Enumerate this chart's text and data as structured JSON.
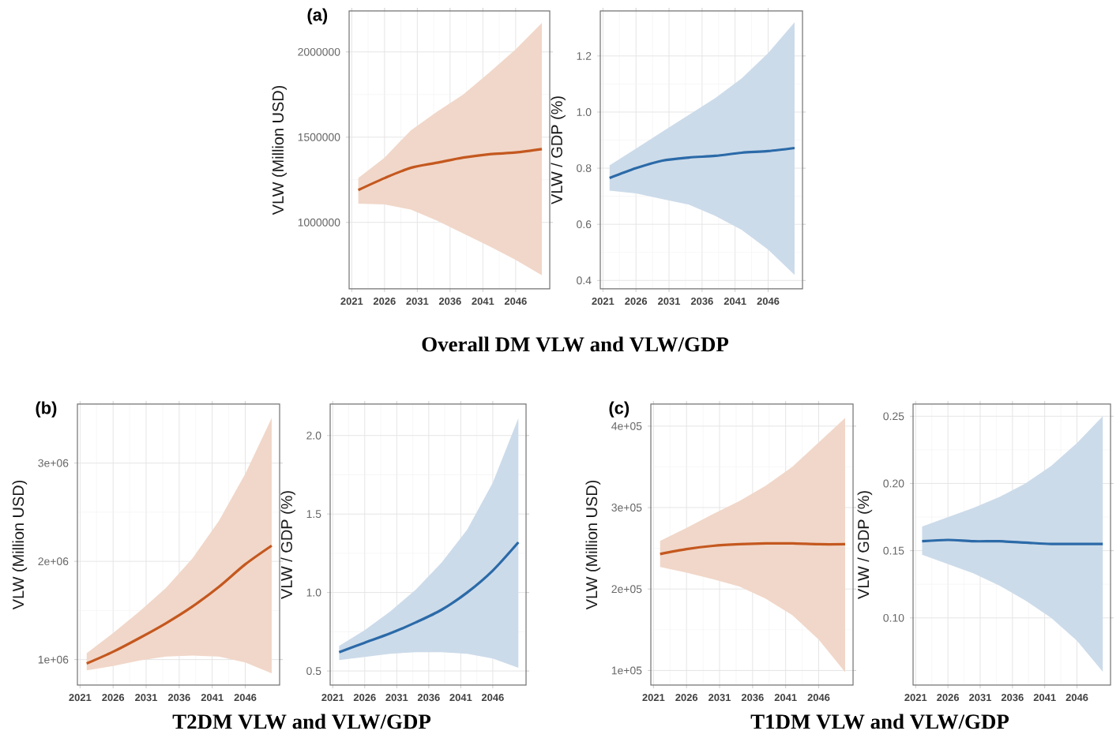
{
  "chart_data": [
    {
      "type": "line",
      "ylabel": "VLW (Million USD)",
      "annotations": [
        "(a)",
        "Overall DM VLW and VLW/GDP"
      ],
      "grid": true,
      "xlim": [
        2020.6,
        2051.2
      ],
      "ylim": [
        610000,
        2240000
      ],
      "xticks": [
        2021,
        2026,
        2031,
        2036,
        2041,
        2046
      ],
      "yticks": [
        1000000,
        1500000,
        2000000
      ],
      "x": [
        2022,
        2026,
        2030,
        2034,
        2038,
        2042,
        2046,
        2050
      ],
      "series": [
        {
          "color": "#c4581f",
          "values": [
            1190000,
            1260000,
            1320000,
            1350000,
            1380000,
            1400000,
            1410000,
            1430000
          ],
          "lower": [
            1110000,
            1105000,
            1075000,
            1010000,
            935000,
            860000,
            780000,
            690000
          ],
          "upper": [
            1260000,
            1380000,
            1540000,
            1650000,
            1750000,
            1880000,
            2015000,
            2170000
          ]
        }
      ]
    },
    {
      "type": "line",
      "ylabel": "VLW / GDP (%)",
      "grid": true,
      "xlim": [
        2020.6,
        2051.2
      ],
      "ylim": [
        0.37,
        1.36
      ],
      "xticks": [
        2021,
        2026,
        2031,
        2036,
        2041,
        2046
      ],
      "yticks": [
        0.4,
        0.6,
        0.8,
        {
          "value": 1,
          "label": "1.0"
        },
        1.2
      ],
      "x": [
        2022,
        2026,
        2030,
        2034,
        2038,
        2042,
        2046,
        2050
      ],
      "series": [
        {
          "color": "#2b6aa8",
          "values": [
            0.765,
            0.8,
            0.827,
            0.838,
            0.844,
            0.855,
            0.861,
            0.872
          ],
          "lower": [
            0.72,
            0.71,
            0.69,
            0.67,
            0.63,
            0.58,
            0.51,
            0.42
          ],
          "upper": [
            0.81,
            0.87,
            0.93,
            0.99,
            1.05,
            1.12,
            1.21,
            1.32
          ]
        }
      ]
    },
    {
      "type": "line",
      "ylabel": "VLW (Million USD)",
      "annotations": [
        "(b)",
        "T2DM VLW and VLW/GDP"
      ],
      "grid": true,
      "xlim": [
        2020.6,
        2051.2
      ],
      "ylim": [
        740000,
        3600000
      ],
      "xticks": [
        2021,
        2026,
        2031,
        2036,
        2041,
        2046
      ],
      "yticks": [
        {
          "value": 1000000,
          "label": "1e+06"
        },
        {
          "value": 2000000,
          "label": "2e+06"
        },
        {
          "value": 3000000,
          "label": "3e+06"
        }
      ],
      "x": [
        2022,
        2026,
        2030,
        2034,
        2038,
        2042,
        2046,
        2050
      ],
      "series": [
        {
          "color": "#c4581f",
          "values": [
            960000,
            1080000,
            1220000,
            1370000,
            1540000,
            1740000,
            1970000,
            2160000
          ],
          "lower": [
            890000,
            935000,
            990000,
            1030000,
            1040000,
            1030000,
            970000,
            860000
          ],
          "upper": [
            1065000,
            1270000,
            1490000,
            1730000,
            2030000,
            2410000,
            2890000,
            3460000
          ]
        }
      ]
    },
    {
      "type": "line",
      "ylabel": "VLW / GDP (%)",
      "grid": true,
      "xlim": [
        2020.6,
        2051.2
      ],
      "ylim": [
        0.41,
        2.2
      ],
      "xticks": [
        2021,
        2026,
        2031,
        2036,
        2041,
        2046
      ],
      "yticks": [
        0.5,
        {
          "value": 1,
          "label": "1.0"
        },
        1.5,
        {
          "value": 2,
          "label": "2.0"
        }
      ],
      "x": [
        2022,
        2026,
        2030,
        2034,
        2038,
        2042,
        2046,
        2050
      ],
      "series": [
        {
          "color": "#2b6aa8",
          "values": [
            0.62,
            0.68,
            0.74,
            0.81,
            0.89,
            1.0,
            1.14,
            1.32
          ],
          "lower": [
            0.57,
            0.59,
            0.61,
            0.62,
            0.62,
            0.61,
            0.58,
            0.52
          ],
          "upper": [
            0.66,
            0.76,
            0.88,
            1.02,
            1.19,
            1.4,
            1.7,
            2.11
          ]
        }
      ]
    },
    {
      "type": "line",
      "ylabel": "VLW (Million USD)",
      "annotations": [
        "(c)",
        "T1DM VLW and VLW/GDP"
      ],
      "grid": true,
      "xlim": [
        2020.6,
        2051.2
      ],
      "ylim": [
        82000,
        427000
      ],
      "xticks": [
        2021,
        2026,
        2031,
        2036,
        2041,
        2046
      ],
      "yticks": [
        {
          "value": 100000,
          "label": "1e+05"
        },
        {
          "value": 200000,
          "label": "2e+05"
        },
        {
          "value": 300000,
          "label": "3e+05"
        },
        {
          "value": 400000,
          "label": "4e+05"
        }
      ],
      "x": [
        2022,
        2026,
        2030,
        2034,
        2038,
        2042,
        2046,
        2050
      ],
      "series": [
        {
          "color": "#c4581f",
          "values": [
            243000,
            249000,
            253000,
            255000,
            256000,
            256000,
            255000,
            255000
          ],
          "lower": [
            227000,
            220000,
            212000,
            203000,
            188000,
            168000,
            138000,
            98000
          ],
          "upper": [
            259000,
            275000,
            292000,
            308000,
            327000,
            350000,
            380000,
            410000
          ]
        }
      ]
    },
    {
      "type": "line",
      "ylabel": "VLW / GDP (%)",
      "grid": true,
      "xlim": [
        2020.6,
        2051.2
      ],
      "ylim": [
        0.05,
        0.259
      ],
      "xticks": [
        2021,
        2026,
        2031,
        2036,
        2041,
        2046
      ],
      "yticks": [
        {
          "value": 0.1,
          "label": "0.10"
        },
        0.15,
        {
          "value": 0.2,
          "label": "0.20"
        },
        0.25
      ],
      "x": [
        2022,
        2026,
        2030,
        2034,
        2038,
        2042,
        2046,
        2050
      ],
      "series": [
        {
          "color": "#2b6aa8",
          "values": [
            0.157,
            0.158,
            0.157,
            0.157,
            0.156,
            0.155,
            0.155,
            0.155
          ],
          "lower": [
            0.147,
            0.14,
            0.133,
            0.124,
            0.113,
            0.1,
            0.083,
            0.06
          ],
          "upper": [
            0.168,
            0.175,
            0.182,
            0.19,
            0.2,
            0.213,
            0.23,
            0.25
          ]
        }
      ]
    }
  ]
}
